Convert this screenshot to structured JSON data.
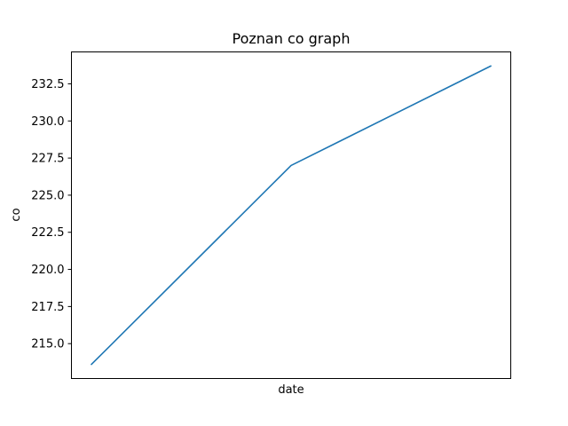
{
  "chart_data": {
    "type": "line",
    "title": "Poznan co graph",
    "xlabel": "date",
    "ylabel": "co",
    "x": [
      0,
      1,
      2
    ],
    "series": [
      {
        "values": [
          213.6,
          227.0,
          233.7
        ]
      }
    ],
    "ylim": [
      212.65,
      234.65
    ],
    "yticks": [
      215.0,
      217.5,
      220.0,
      222.5,
      225.0,
      227.5,
      230.0,
      232.5
    ],
    "ytick_labels": [
      "215.0",
      "217.5",
      "220.0",
      "222.5",
      "225.0",
      "227.5",
      "230.0",
      "232.5"
    ],
    "grid": false,
    "line_color": "#1f77b4"
  }
}
